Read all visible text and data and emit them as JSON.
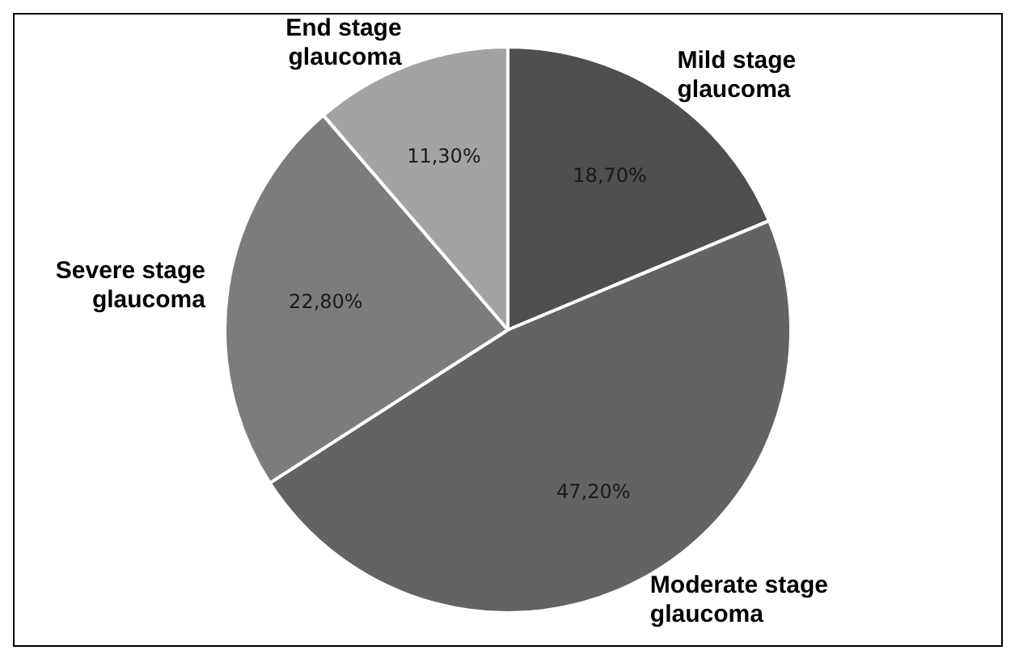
{
  "chart_data": {
    "type": "pie",
    "categories": [
      "Mild stage glaucoma",
      "Moderate stage glaucoma",
      "Severe stage glaucoma",
      "End stage glaucoma"
    ],
    "values": [
      18.7,
      47.2,
      22.8,
      11.3
    ],
    "value_labels": [
      "18,70%",
      "47,20%",
      "22,80%",
      "11,30%"
    ],
    "colors": [
      "#4f4f4f",
      "#636363",
      "#7c7c7c",
      "#a3a3a3"
    ],
    "legend": false
  }
}
